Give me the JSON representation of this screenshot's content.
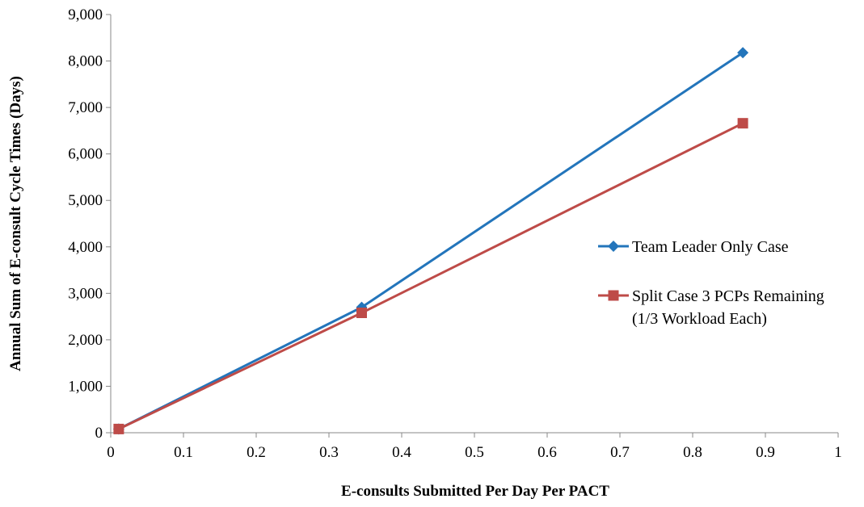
{
  "chart_data": {
    "type": "line",
    "title": "",
    "xlabel": "E-consults Submitted Per Day Per PACT",
    "ylabel": "Annual Sum of E-consult Cycle Times (Days)",
    "xlim": [
      0,
      1
    ],
    "ylim": [
      0,
      9000
    ],
    "x_ticks": [
      0,
      0.1,
      0.2,
      0.3,
      0.4,
      0.5,
      0.6,
      0.7,
      0.8,
      0.9,
      1
    ],
    "x_tick_labels": [
      "0",
      "0.1",
      "0.2",
      "0.3",
      "0.4",
      "0.5",
      "0.6",
      "0.7",
      "0.8",
      "0.9",
      "1"
    ],
    "y_ticks": [
      0,
      1000,
      2000,
      3000,
      4000,
      5000,
      6000,
      7000,
      8000,
      9000
    ],
    "y_tick_labels": [
      "0",
      "1,000",
      "2,000",
      "3,000",
      "4,000",
      "5,000",
      "6,000",
      "7,000",
      "8,000",
      "9,000"
    ],
    "grid": false,
    "legend_position": "right",
    "series": [
      {
        "name": "Team Leader Only Case",
        "legend_lines": [
          "Team Leader Only Case"
        ],
        "color": "#2375BB",
        "marker": "diamond",
        "x": [
          0.011,
          0.345,
          0.869
        ],
        "y": [
          80,
          2700,
          8180
        ]
      },
      {
        "name": "Split Case 3 PCPs Remaining (1/3 Workload Each)",
        "legend_lines": [
          "Split Case 3 PCPs Remaining",
          "(1/3 Workload Each)"
        ],
        "color": "#BE4B48",
        "marker": "square",
        "x": [
          0.011,
          0.345,
          0.869
        ],
        "y": [
          80,
          2580,
          6660
        ]
      }
    ]
  }
}
